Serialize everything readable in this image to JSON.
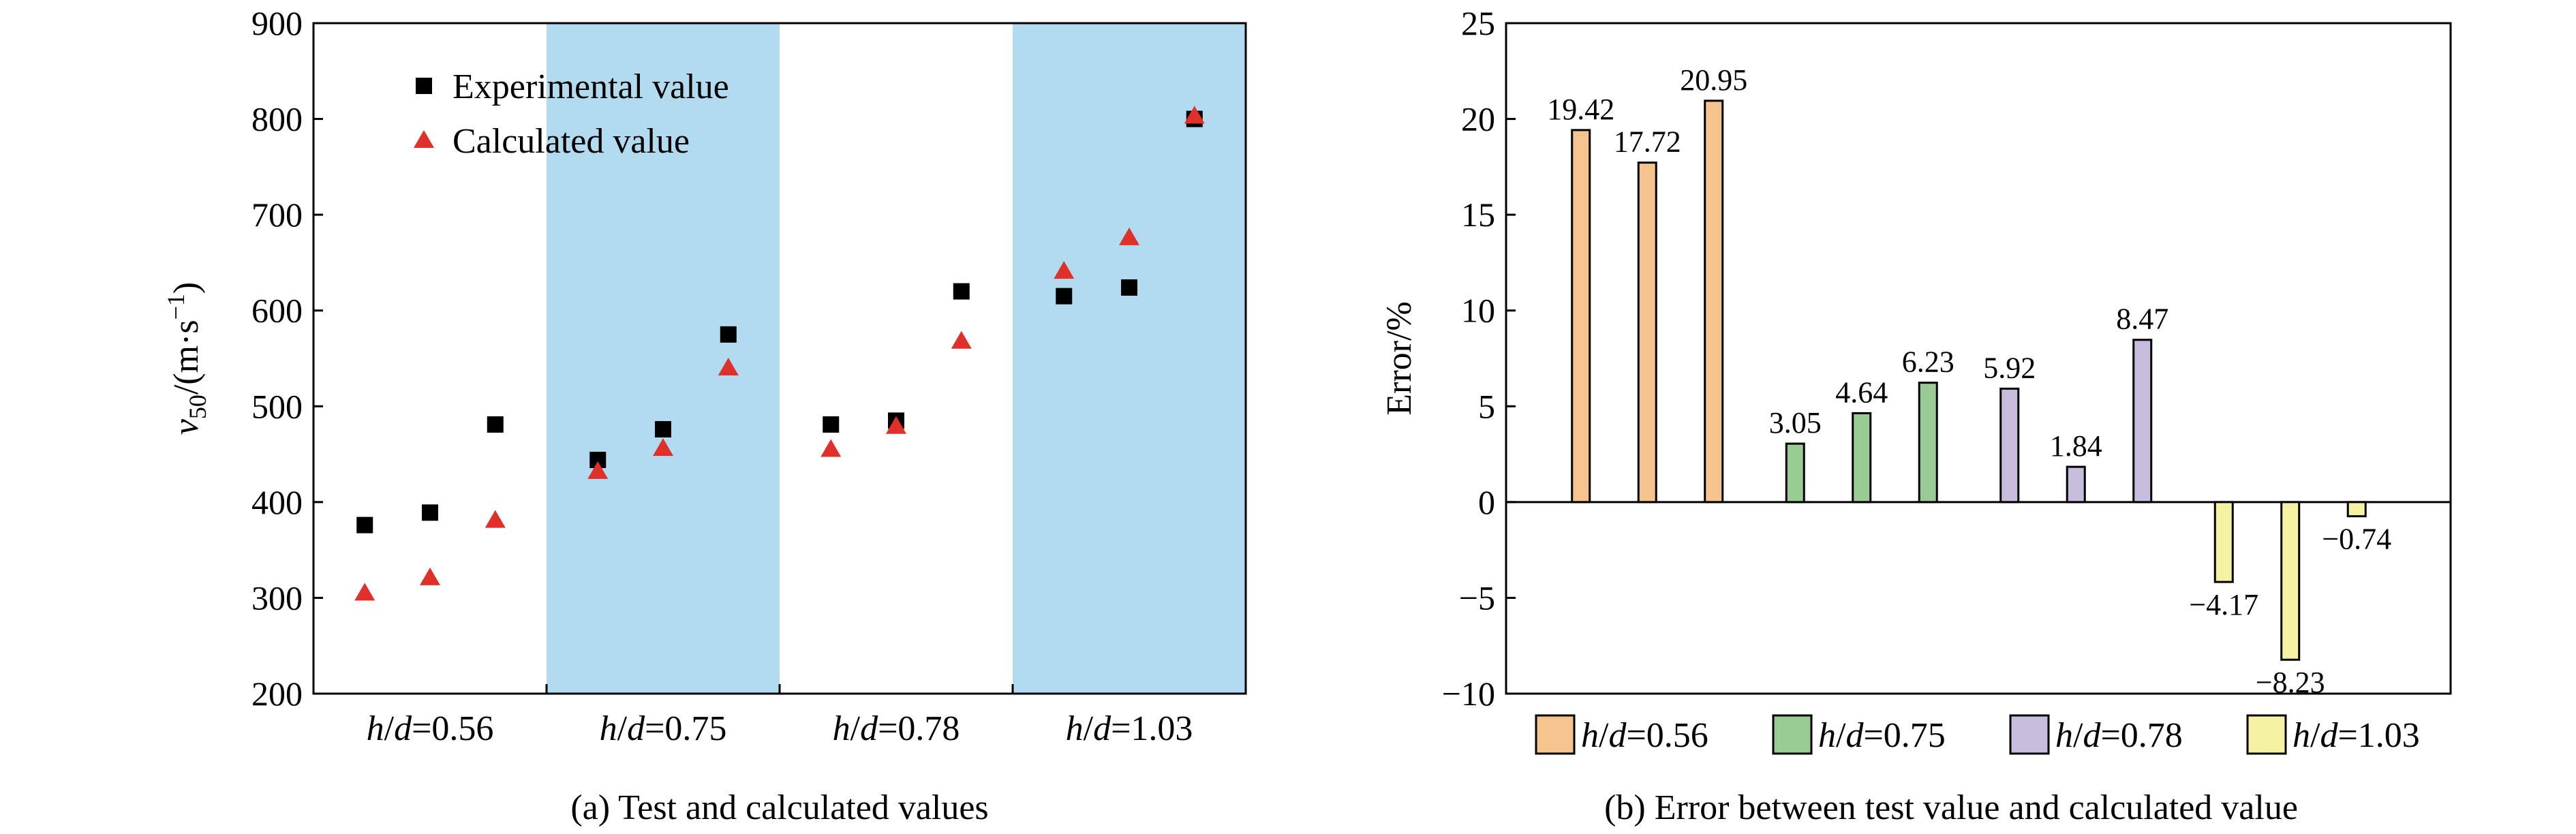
{
  "chart_data": [
    {
      "type": "scatter",
      "panel_label": "(a) Test and calculated values",
      "ylabel_main": "v",
      "ylabel_sub": "50",
      "ylabel_unit_pre": "/(m·s",
      "ylabel_unit_sup": "−1",
      "ylabel_unit_post": ")",
      "ylim": [
        200,
        900
      ],
      "yticks": [
        200,
        300,
        400,
        500,
        600,
        700,
        800,
        900
      ],
      "groups": [
        {
          "label": "h/d=0.56",
          "var": "h",
          "var2": "d",
          "value": "=0.56",
          "shaded": false
        },
        {
          "label": "h/d=0.75",
          "var": "h",
          "var2": "d",
          "value": "=0.75",
          "shaded": true
        },
        {
          "label": "h/d=0.78",
          "var": "h",
          "var2": "d",
          "value": "=0.78",
          "shaded": false
        },
        {
          "label": "h/d=1.03",
          "var": "h",
          "var2": "d",
          "value": "=1.03",
          "shaded": true
        }
      ],
      "series": [
        {
          "name": "Experimental value",
          "marker": "square",
          "color": "#000000",
          "values": [
            376,
            389,
            481,
            444,
            476,
            575,
            481,
            485,
            620,
            615,
            624,
            800
          ]
        },
        {
          "name": "Calculated value",
          "marker": "triangle",
          "color": "#e0302a",
          "values": [
            305,
            321,
            381,
            432,
            456,
            540,
            455,
            479,
            568,
            641,
            676,
            803
          ]
        }
      ],
      "legend_position": "top-left",
      "shade_color": "#b2dbef"
    },
    {
      "type": "bar",
      "panel_label": "(b) Error between test value and calculated value",
      "ylabel": "Error/%",
      "ylim": [
        -10,
        25
      ],
      "yticks": [
        -10,
        -5,
        0,
        5,
        10,
        15,
        20,
        25
      ],
      "ytick_labels": [
        "−10",
        "−5",
        "0",
        "5",
        "10",
        "15",
        "20",
        "25"
      ],
      "values": [
        19.42,
        17.72,
        20.95,
        3.05,
        4.64,
        6.23,
        5.92,
        1.84,
        8.47,
        -4.17,
        -8.23,
        -0.74
      ],
      "value_labels": [
        "19.42",
        "17.72",
        "20.95",
        "3.05",
        "4.64",
        "6.23",
        "5.92",
        "1.84",
        "8.47",
        "−4.17",
        "−8.23",
        "−0.74"
      ],
      "group_of_bar": [
        0,
        0,
        0,
        1,
        1,
        1,
        2,
        2,
        2,
        3,
        3,
        3
      ],
      "legend": [
        {
          "var": "h",
          "var2": "d",
          "value": "=0.56",
          "color": "#f5c38e"
        },
        {
          "var": "h",
          "var2": "d",
          "value": "=0.75",
          "color": "#99cc95"
        },
        {
          "var": "h",
          "var2": "d",
          "value": "=0.78",
          "color": "#c6bcdb"
        },
        {
          "var": "h",
          "var2": "d",
          "value": "=1.03",
          "color": "#f6f2a4"
        }
      ],
      "legend_position": "bottom"
    }
  ]
}
